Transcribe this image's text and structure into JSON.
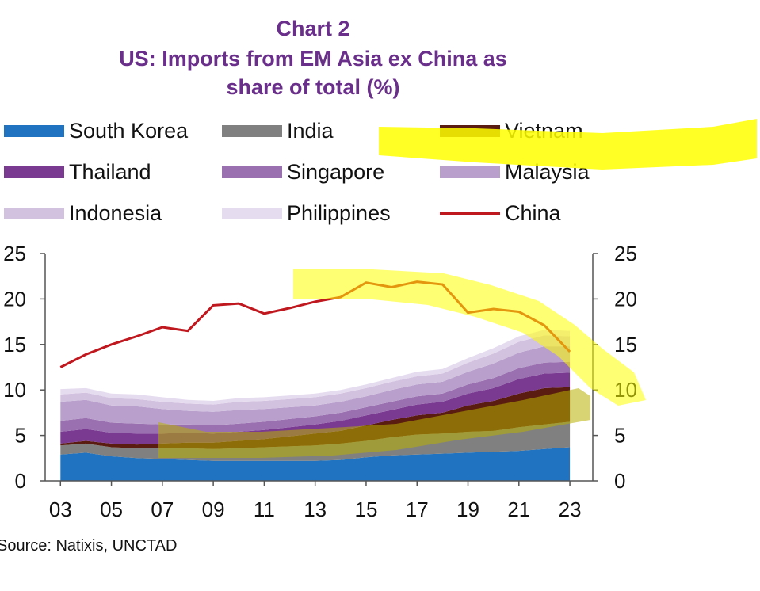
{
  "title": {
    "line1": "Chart 2",
    "line2": "US: Imports from EM Asia ex China as",
    "line3": "share of total (%)"
  },
  "source": "Source: Natixis, UNCTAD",
  "chart_data": {
    "type": "area",
    "stacked": true,
    "x": [
      2003,
      2004,
      2005,
      2006,
      2007,
      2008,
      2009,
      2010,
      2011,
      2012,
      2013,
      2014,
      2015,
      2016,
      2017,
      2018,
      2019,
      2020,
      2021,
      2022,
      2023
    ],
    "x_tick_labels": [
      "03",
      "05",
      "07",
      "09",
      "11",
      "13",
      "15",
      "17",
      "19",
      "21",
      "23"
    ],
    "x_ticks": [
      2003,
      2005,
      2007,
      2009,
      2011,
      2013,
      2015,
      2017,
      2019,
      2021,
      2023
    ],
    "ylim": [
      0,
      25
    ],
    "y_ticks": [
      "0",
      "5",
      "10",
      "15",
      "20",
      "25"
    ],
    "y_tick_values": [
      0,
      5,
      10,
      15,
      20,
      25
    ],
    "legend_position": "top",
    "series": [
      {
        "name": "South Korea",
        "color": "#1f73c0",
        "values": [
          2.9,
          3.1,
          2.7,
          2.5,
          2.4,
          2.3,
          2.2,
          2.2,
          2.2,
          2.2,
          2.2,
          2.3,
          2.6,
          2.8,
          2.9,
          3.0,
          3.1,
          3.2,
          3.3,
          3.5,
          3.7
        ]
      },
      {
        "name": "India",
        "color": "#808080",
        "values": [
          1.0,
          1.0,
          1.0,
          1.1,
          1.2,
          1.3,
          1.3,
          1.4,
          1.5,
          1.6,
          1.7,
          1.8,
          1.8,
          2.0,
          2.2,
          2.2,
          2.3,
          2.3,
          2.6,
          2.7,
          2.8
        ]
      },
      {
        "name": "Vietnam",
        "color": "#5a1c10",
        "values": [
          0.2,
          0.3,
          0.4,
          0.4,
          0.5,
          0.6,
          0.7,
          0.8,
          0.9,
          1.1,
          1.3,
          1.4,
          1.7,
          1.9,
          2.1,
          2.3,
          2.9,
          3.3,
          3.7,
          4.0,
          3.8
        ]
      },
      {
        "name": "Thailand",
        "color": "#7a3a92",
        "values": [
          1.3,
          1.3,
          1.2,
          1.2,
          1.1,
          1.1,
          1.0,
          1.0,
          1.0,
          1.0,
          1.0,
          1.1,
          1.1,
          1.1,
          1.2,
          1.2,
          1.3,
          1.4,
          1.6,
          1.6,
          1.6
        ]
      },
      {
        "name": "Singapore",
        "color": "#9a70b0",
        "values": [
          1.2,
          1.2,
          1.1,
          1.1,
          1.0,
          0.9,
          0.9,
          0.9,
          0.9,
          0.9,
          0.9,
          0.9,
          0.9,
          0.9,
          0.9,
          0.9,
          1.0,
          1.1,
          1.2,
          1.2,
          1.2
        ]
      },
      {
        "name": "Malaysia",
        "color": "#b9a0cc",
        "values": [
          2.1,
          2.0,
          1.9,
          1.9,
          1.7,
          1.5,
          1.5,
          1.5,
          1.4,
          1.3,
          1.2,
          1.2,
          1.2,
          1.3,
          1.3,
          1.3,
          1.4,
          1.6,
          1.7,
          1.8,
          1.7
        ]
      },
      {
        "name": "Indonesia",
        "color": "#d2c2e0",
        "values": [
          0.8,
          0.8,
          0.8,
          0.8,
          0.8,
          0.8,
          0.8,
          0.9,
          0.9,
          0.9,
          0.9,
          0.9,
          0.9,
          0.9,
          0.9,
          0.9,
          1.0,
          1.1,
          1.2,
          1.2,
          1.1
        ]
      },
      {
        "name": "Philippines",
        "color": "#e6dcef",
        "values": [
          0.6,
          0.5,
          0.5,
          0.5,
          0.5,
          0.4,
          0.4,
          0.4,
          0.4,
          0.4,
          0.4,
          0.4,
          0.4,
          0.4,
          0.5,
          0.5,
          0.5,
          0.6,
          0.6,
          0.6,
          0.6
        ]
      }
    ],
    "line_series": {
      "name": "China",
      "color": "#c0181f",
      "values": [
        12.5,
        13.9,
        15.0,
        15.9,
        16.9,
        16.5,
        19.3,
        19.5,
        18.4,
        19.0,
        19.7,
        20.2,
        21.8,
        21.3,
        21.9,
        21.6,
        18.5,
        18.9,
        18.6,
        17.1,
        14.2
      ]
    }
  }
}
